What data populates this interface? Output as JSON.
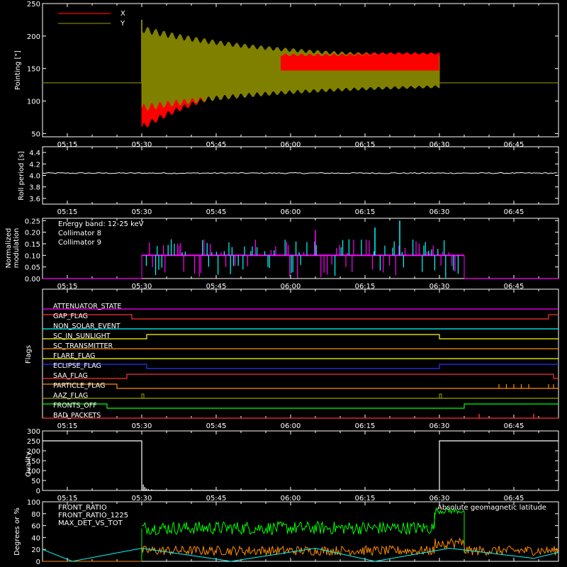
{
  "time_ticks": [
    "05:15",
    "05:30",
    "05:45",
    "06:00",
    "06:15",
    "06:30",
    "06:45"
  ],
  "colors": {
    "x": "#ff0000",
    "y": "#808000",
    "white": "#ffffff",
    "cyan": "#00ffff",
    "magenta": "#ff00ff",
    "green": "#00ff00",
    "orange": "#ff8c00"
  },
  "chart_data": [
    {
      "type": "line",
      "ylabel": "Pointing [\"]",
      "ylim": [
        45,
        250
      ],
      "yticks": [
        "50",
        "100",
        "150",
        "200",
        "250"
      ],
      "legend": [
        {
          "name": "X",
          "color": "#ff0000"
        },
        {
          "name": "Y",
          "color": "#808000"
        }
      ],
      "series": [
        {
          "name": "X",
          "description_values": {
            "x_start": "05:30",
            "x_end": "06:30",
            "center_start": 105,
            "center_end": 163,
            "amplitude_start": 45,
            "amplitude_end": 8,
            "baseline": 128
          }
        },
        {
          "name": "Y",
          "description_values": {
            "x_start": "05:30",
            "x_end": "06:30",
            "center_start": 150,
            "center_end": 145,
            "amplitude_start": 60,
            "amplitude_end": 18,
            "baseline": 128
          }
        }
      ]
    },
    {
      "type": "line",
      "ylabel": "Roll period [s]",
      "ylim": [
        3.5,
        4.5
      ],
      "yticks": [
        "3.6",
        "3.8",
        "4.0",
        "4.2",
        "4.4"
      ],
      "series": [
        {
          "name": "Roll period",
          "value": 4.04
        }
      ]
    },
    {
      "type": "bar",
      "ylabel": "Normalized modulation",
      "ylim": [
        0,
        0.26
      ],
      "yticks": [
        "0.00",
        "0.05",
        "0.10",
        "0.15",
        "0.20",
        "0.25"
      ],
      "annotation": "Energy band: 12-25 keV",
      "legend": [
        {
          "name": "Collimator 8",
          "color": "#00ffff"
        },
        {
          "name": "Collimator 9",
          "color": "#ff00ff"
        }
      ],
      "active_range": [
        "05:30",
        "06:35"
      ],
      "typical_value": 0.1
    },
    {
      "type": "line",
      "ylabel": "Flags",
      "flags": [
        {
          "name": "ATTENUATOR_STATE",
          "color": "#ff00ff"
        },
        {
          "name": "GAP_FLAG",
          "color": "#ff3030"
        },
        {
          "name": "NON_SOLAR_EVENT",
          "color": "#00ffff"
        },
        {
          "name": "SC_IN_SUNLIGHT",
          "color": "#ffff00"
        },
        {
          "name": "SC_TRANSMITTER",
          "color": "#ff8c00"
        },
        {
          "name": "FLARE_FLAG",
          "color": "#ffff00"
        },
        {
          "name": "ECLIPSE_FLAG",
          "color": "#3030ff"
        },
        {
          "name": "SAA_FLAG",
          "color": "#ff3030"
        },
        {
          "name": "PARTICLE_FLAG",
          "color": "#ff8c00"
        },
        {
          "name": "AAZ_FLAG",
          "color": "#a0a000"
        },
        {
          "name": "FRONTS_OFF",
          "color": "#00ff00"
        },
        {
          "name": "BAD_PACKETS",
          "color": "#ff3030"
        }
      ]
    },
    {
      "type": "line",
      "ylabel": "Quality",
      "ylim": [
        0,
        300
      ],
      "yticks": [
        "0",
        "50",
        "100",
        "150",
        "200",
        "250",
        "300"
      ],
      "series": [
        {
          "name": "Quality",
          "values_text": "250 before 05:30, ~0 from 05:30 to 06:30, 250 after 06:30"
        }
      ]
    },
    {
      "type": "line",
      "ylabel": "Degrees or %",
      "ylim": [
        0,
        100
      ],
      "yticks": [
        "0",
        "20",
        "40",
        "60",
        "80",
        "100"
      ],
      "legend": [
        {
          "name": "FRONT_RATIO",
          "color": "#ffff00"
        },
        {
          "name": "FRONT_RATIO_1225",
          "color": "#00ff00"
        },
        {
          "name": "MAX_DET_VS_TOT",
          "color": "#ff8c00"
        }
      ],
      "annotation": "Absolute geomagnetic latitude",
      "annotation_color": "#00ffff",
      "series": [
        {
          "name": "FRONT_RATIO_1225",
          "typical": 55,
          "peak_window": [
            "06:29",
            "06:35"
          ],
          "peak_value": 85
        },
        {
          "name": "MAX_DET_VS_TOT",
          "typical": 15
        },
        {
          "name": "Absolute geomagnetic latitude",
          "min": 0,
          "max": 25
        }
      ]
    }
  ]
}
